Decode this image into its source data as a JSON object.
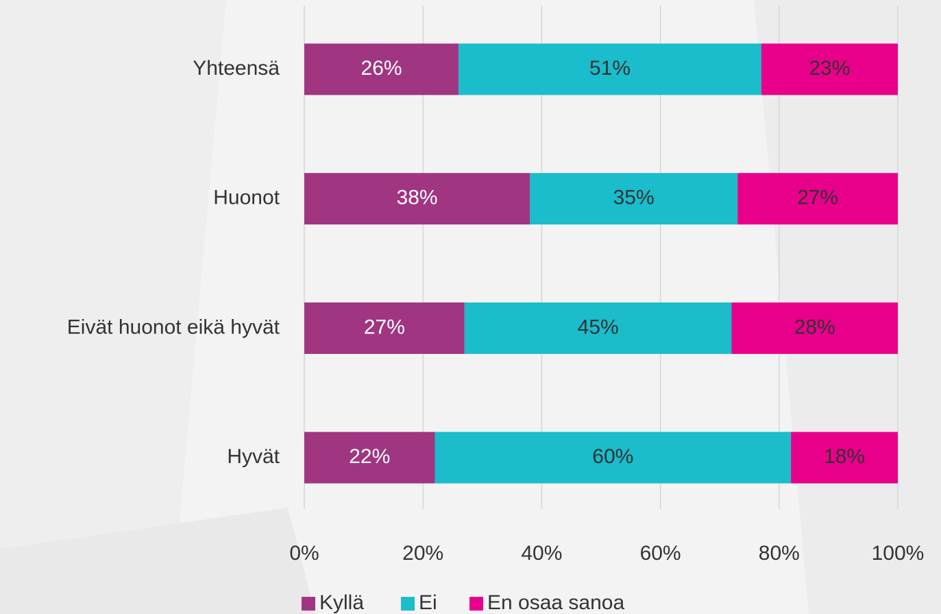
{
  "chart_data": {
    "type": "stacked-bar-horizontal",
    "categories": [
      "Yhteensä",
      "Huonot",
      "Eivät huonot eikä hyvät",
      "Hyvät"
    ],
    "series": [
      {
        "name": "Kyllä",
        "color": "#a03582",
        "values": [
          26,
          38,
          27,
          22
        ],
        "value_labels": [
          "26%",
          "38%",
          "27%",
          "22%"
        ]
      },
      {
        "name": "Ei",
        "color": "#1bbccb",
        "values": [
          51,
          35,
          45,
          60
        ],
        "value_labels": [
          "51%",
          "35%",
          "45%",
          "60%"
        ]
      },
      {
        "name": "En osaa sanoa",
        "color": "#e8008a",
        "values": [
          23,
          27,
          28,
          18
        ],
        "value_labels": [
          "23%",
          "27%",
          "28%",
          "18%"
        ]
      }
    ],
    "xlim": [
      0,
      100
    ],
    "xticks": [
      {
        "value": 0,
        "label": "0%"
      },
      {
        "value": 20,
        "label": "20%"
      },
      {
        "value": 40,
        "label": "40%"
      },
      {
        "value": 60,
        "label": "60%"
      },
      {
        "value": 80,
        "label": "80%"
      },
      {
        "value": 100,
        "label": "100%"
      }
    ],
    "grid": true,
    "legend": "bottom"
  }
}
